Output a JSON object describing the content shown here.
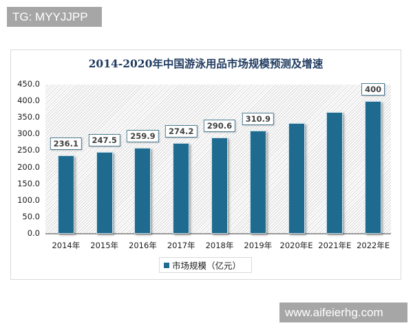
{
  "watermarks": {
    "top": "TG: MYYJJPP",
    "bottom": "www.aifeierhg.com"
  },
  "colors": {
    "bar": "#1e6b8f",
    "title": "#1f3a5f",
    "watermark_bg": "#a6a6a6"
  },
  "chart": {
    "title": "2014-2020年中国游泳用品市场规模预测及增速",
    "legend_label": "市场规模（亿元）",
    "y_ticks": [
      "450.0",
      "400.0",
      "350.0",
      "300.0",
      "250.0",
      "200.0",
      "150.0",
      "100.0",
      "50.0",
      "0.0"
    ],
    "bars": [
      {
        "category": "2014年",
        "value": 236.1,
        "label": "236.1"
      },
      {
        "category": "2015年",
        "value": 247.5,
        "label": "247.5"
      },
      {
        "category": "2016年",
        "value": 259.9,
        "label": "259.9"
      },
      {
        "category": "2017年",
        "value": 274.2,
        "label": "274.2"
      },
      {
        "category": "2018年",
        "value": 290.6,
        "label": "290.6"
      },
      {
        "category": "2019年",
        "value": 310.9,
        "label": "310.9"
      },
      {
        "category": "2020年E",
        "value": 334,
        "label": ""
      },
      {
        "category": "2021年E",
        "value": 367,
        "label": ""
      },
      {
        "category": "2022年E",
        "value": 400,
        "label": "400"
      }
    ]
  },
  "chart_data": {
    "type": "bar",
    "title": "2014-2020年中国游泳用品市场规模预测及增速",
    "categories": [
      "2014年",
      "2015年",
      "2016年",
      "2017年",
      "2018年",
      "2019年",
      "2020年E",
      "2021年E",
      "2022年E"
    ],
    "series": [
      {
        "name": "市场规模（亿元）",
        "values": [
          236.1,
          247.5,
          259.9,
          274.2,
          290.6,
          310.9,
          334,
          367,
          400
        ]
      }
    ],
    "xlabel": "",
    "ylabel": "",
    "ylim": [
      0,
      450
    ],
    "y_ticks": [
      0,
      50,
      100,
      150,
      200,
      250,
      300,
      350,
      400,
      450
    ],
    "data_labels": [
      "236.1",
      "247.5",
      "259.9",
      "274.2",
      "290.6",
      "310.9",
      "",
      "",
      "400"
    ],
    "legend_position": "bottom",
    "grid": false
  }
}
